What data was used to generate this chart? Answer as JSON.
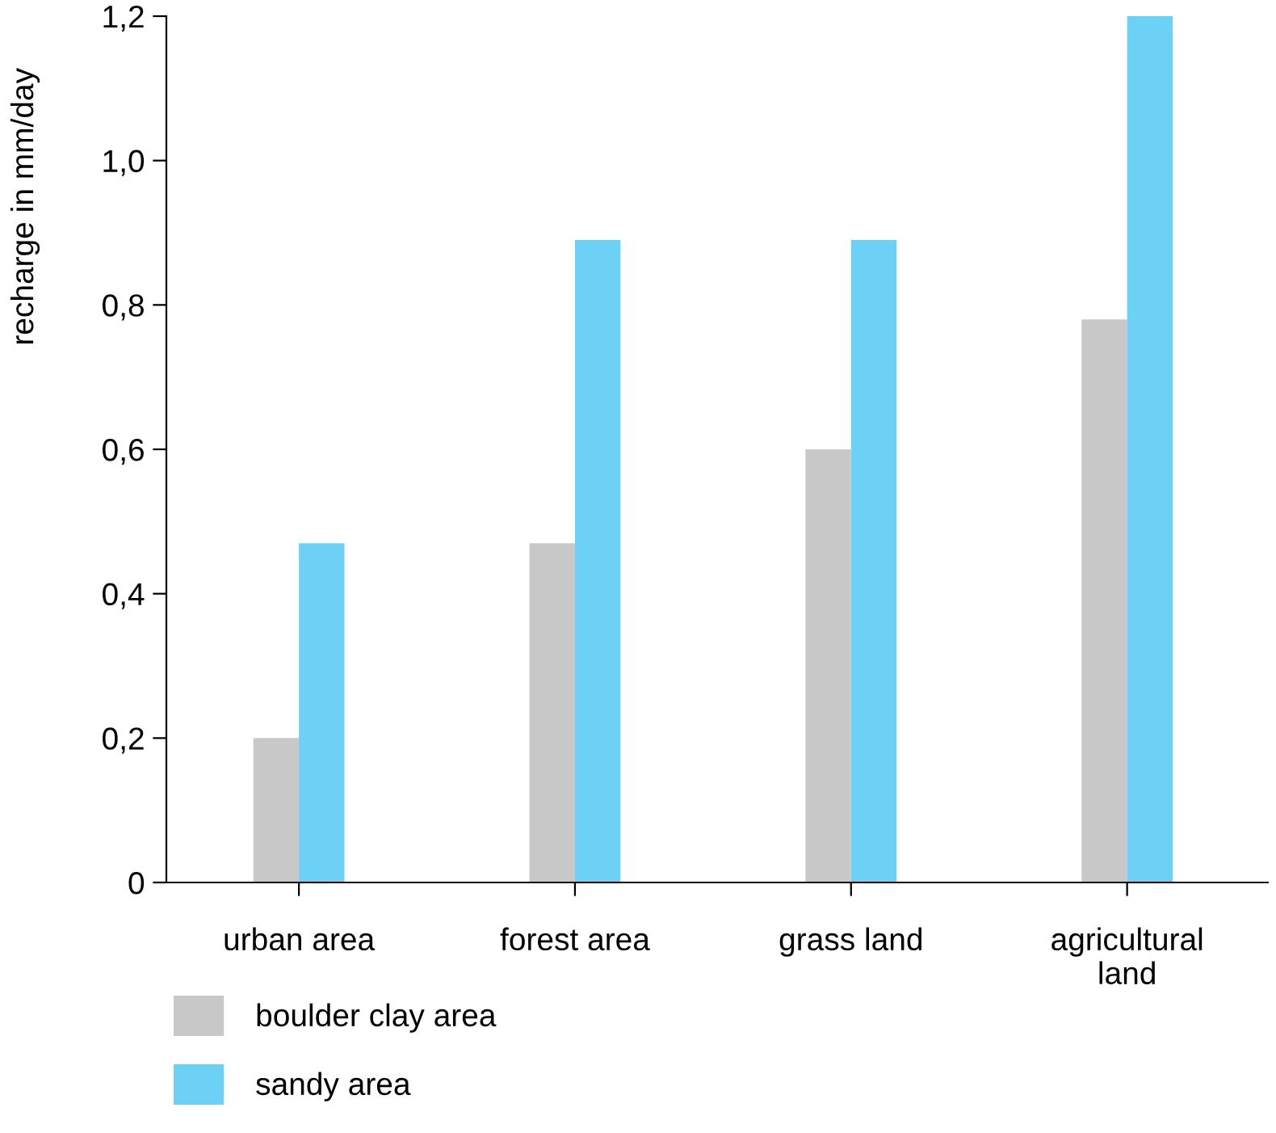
{
  "chart_data": {
    "type": "bar",
    "ylabel": "recharge in mm/day",
    "categories": [
      "urban area",
      "forest area",
      "grass land",
      "agricultural land"
    ],
    "series": [
      {
        "name": "boulder clay area",
        "color": "#c8c8c8",
        "values": [
          0.2,
          0.47,
          0.6,
          0.78
        ]
      },
      {
        "name": "sandy area",
        "color": "#6dd0f5",
        "values": [
          0.47,
          0.89,
          0.89,
          1.2
        ]
      }
    ],
    "ylim": [
      0,
      1.2
    ],
    "yticks": [
      0,
      {
        "value": 0.2,
        "label": "0,2"
      },
      {
        "value": 0.4,
        "label": "0,4"
      },
      {
        "value": 0.6,
        "label": "0,6"
      },
      {
        "value": 0.8,
        "label": "0,8"
      },
      {
        "value": 1.0,
        "label": "1,0"
      },
      {
        "value": 1.2,
        "label": "1,2"
      }
    ],
    "grid": false,
    "legend": "bottom left"
  }
}
